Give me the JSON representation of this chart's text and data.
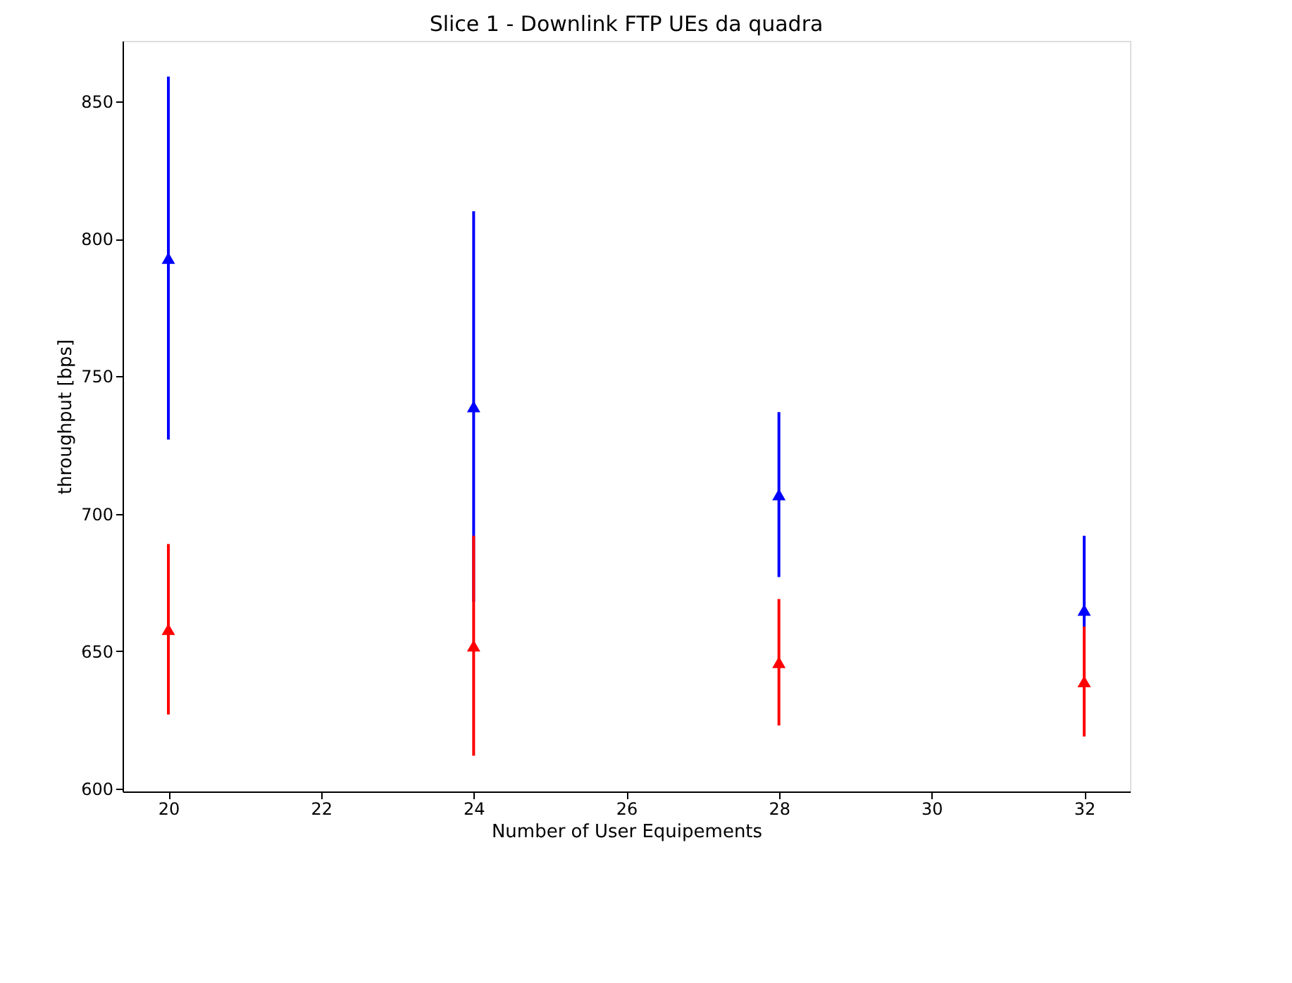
{
  "chart_data": {
    "type": "scatter",
    "title": "Slice 1 - Downlink FTP UEs da quadra",
    "xlabel": "Number of User Equipements",
    "ylabel": "throughput [bps]",
    "x": [
      20,
      24,
      28,
      32
    ],
    "series": [
      {
        "color": "#0000ff",
        "values": [
          793,
          739,
          707,
          665
        ],
        "errors": [
          66,
          71,
          30,
          27
        ]
      },
      {
        "color": "#ff0000",
        "values": [
          658,
          652,
          646,
          639
        ],
        "errors": [
          31,
          40,
          23,
          20
        ]
      }
    ],
    "xlim": [
      19.4,
      32.6
    ],
    "xticks": [
      20,
      22,
      24,
      26,
      28,
      30,
      32
    ],
    "ylim": [
      599,
      872
    ],
    "yticks": [
      600,
      650,
      700,
      750,
      800,
      850
    ],
    "marker": "triangle",
    "grid": false
  }
}
